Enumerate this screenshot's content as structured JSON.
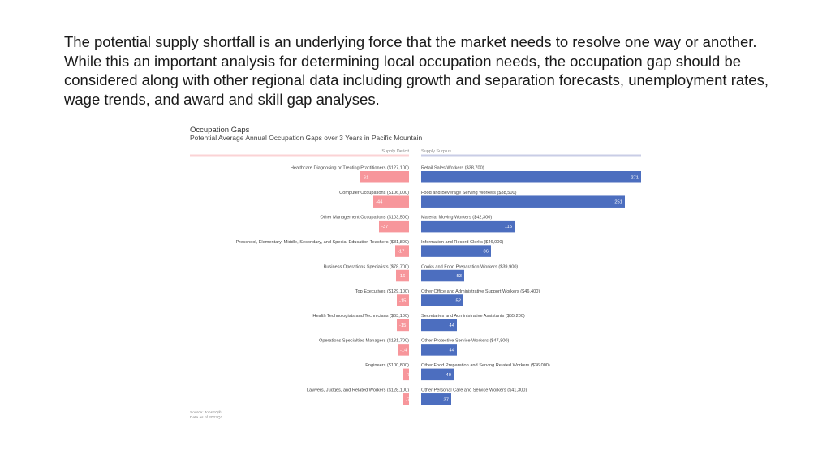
{
  "slide": {
    "body_text": "The potential supply shortfall is an underlying force that the market needs to resolve one way or another. While this an important analysis for determining local occupation needs, the occupation gap should be considered along with other regional data including growth and separation forecasts, unemployment rates, wage trends, and award and skill gap analyses."
  },
  "colors": {
    "deficit": "#f7969b",
    "deficit_light": "#fbd3d5",
    "surplus": "#4c6ebf",
    "surplus_light": "#c9cde6",
    "text": "#444444",
    "muted": "#888888"
  },
  "chart_data": {
    "type": "bar",
    "title": "Occupation Gaps",
    "subtitle": "Potential Average Annual Occupation Gaps over 3 Years in Pacific Mountain",
    "deficit_header": "Supply Deficit",
    "surplus_header": "Supply Surplus",
    "deficit": [
      {
        "label": "Healthcare Diagnosing or Treating Practitioners ($127,100)",
        "value": -61
      },
      {
        "label": "Computer Occupations ($106,000)",
        "value": -44
      },
      {
        "label": "Other Management Occupations ($103,500)",
        "value": -37
      },
      {
        "label": "Preschool, Elementary, Middle, Secondary, and Special Education Teachers ($81,800)",
        "value": -17
      },
      {
        "label": "Business Operations Specialists ($78,700)",
        "value": -16
      },
      {
        "label": "Top Executives ($129,100)",
        "value": -15
      },
      {
        "label": "Health Technologists and Technicians ($63,100)",
        "value": -15
      },
      {
        "label": "Operations Specialties Managers ($131,700)",
        "value": -14
      },
      {
        "label": "Engineers ($100,800)",
        "value": -7
      },
      {
        "label": "Lawyers, Judges, and Related Workers ($128,100)",
        "value": -7
      }
    ],
    "surplus": [
      {
        "label": "Retail Sales Workers ($38,700)",
        "value": 271
      },
      {
        "label": "Food and Beverage Serving Workers ($38,500)",
        "value": 251
      },
      {
        "label": "Material Moving Workers ($42,300)",
        "value": 115
      },
      {
        "label": "Information and Record Clerks ($46,000)",
        "value": 86
      },
      {
        "label": "Cooks and Food Preparation Workers ($39,900)",
        "value": 53
      },
      {
        "label": "Other Office and Administrative Support Workers ($46,400)",
        "value": 52
      },
      {
        "label": "Secretaries and Administrative Assistants ($55,200)",
        "value": 44
      },
      {
        "label": "Other Protective Service Workers ($47,800)",
        "value": 44
      },
      {
        "label": "Other Food Preparation and Serving Related Workers ($36,000)",
        "value": 40
      },
      {
        "label": "Other Personal Care and Service Workers ($41,300)",
        "value": 37
      }
    ],
    "value_scale_max": 271,
    "source": "Source: JobsEQ®",
    "data_as_of": "Data as of 2023Q1"
  }
}
